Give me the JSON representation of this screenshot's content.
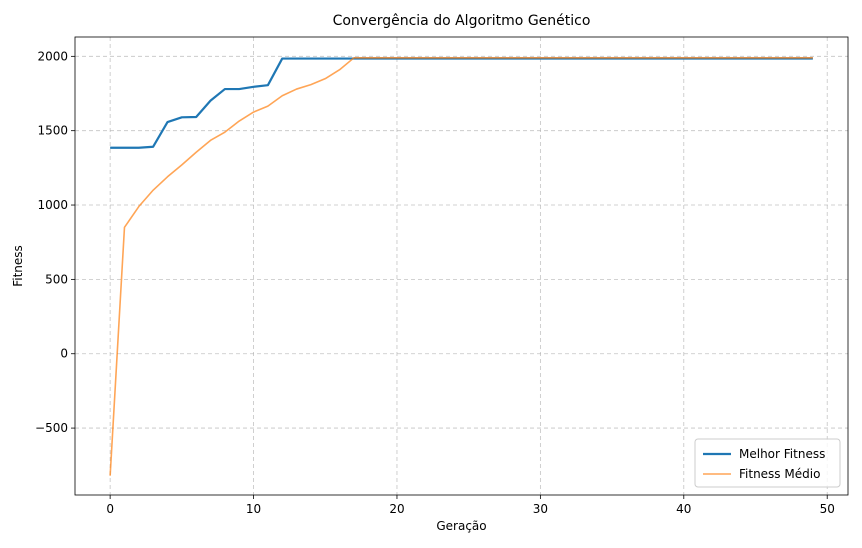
{
  "chart_data": {
    "type": "line",
    "title": "Convergência do Algoritmo Genético",
    "xlabel": "Geração",
    "ylabel": "Fitness",
    "xlim": [
      -2.45,
      51.45
    ],
    "ylim": [
      -950,
      2130
    ],
    "xticks": [
      0,
      10,
      20,
      30,
      40,
      50
    ],
    "yticks": [
      -500,
      0,
      500,
      1000,
      1500,
      2000
    ],
    "ytick_labels": [
      "−500",
      "0",
      "500",
      "1000",
      "1500",
      "2000"
    ],
    "grid": true,
    "legend_position": "lower-right",
    "series": [
      {
        "name": "Melhor Fitness",
        "color": "#1f77b4",
        "x": [
          0,
          1,
          2,
          3,
          4,
          5,
          6,
          7,
          8,
          9,
          10,
          11,
          12,
          13,
          14,
          15,
          16,
          17,
          18,
          19,
          20,
          21,
          22,
          23,
          24,
          25,
          26,
          27,
          28,
          29,
          30,
          31,
          32,
          33,
          34,
          35,
          36,
          37,
          38,
          39,
          40,
          41,
          42,
          43,
          44,
          45,
          46,
          47,
          48,
          49
        ],
        "values": [
          1385,
          1385,
          1385,
          1392,
          1558,
          1590,
          1592,
          1702,
          1780,
          1780,
          1795,
          1806,
          1985,
          1985,
          1985,
          1985,
          1985,
          1985,
          1985,
          1985,
          1985,
          1985,
          1985,
          1985,
          1985,
          1985,
          1985,
          1985,
          1985,
          1985,
          1985,
          1985,
          1985,
          1985,
          1985,
          1985,
          1985,
          1985,
          1985,
          1985,
          1985,
          1985,
          1985,
          1985,
          1985,
          1985,
          1985,
          1985,
          1985,
          1985
        ]
      },
      {
        "name": "Fitness Médio",
        "color": "#ff7f0e",
        "x": [
          0,
          1,
          2,
          3,
          4,
          5,
          6,
          7,
          8,
          9,
          10,
          11,
          12,
          13,
          14,
          15,
          16,
          17,
          18,
          19,
          20,
          21,
          22,
          23,
          24,
          25,
          26,
          27,
          28,
          29,
          30,
          31,
          32,
          33,
          34,
          35,
          36,
          37,
          38,
          39,
          40,
          41,
          42,
          43,
          44,
          45,
          46,
          47,
          48,
          49
        ],
        "values": [
          -820,
          850,
          990,
          1100,
          1190,
          1270,
          1355,
          1435,
          1490,
          1565,
          1625,
          1665,
          1735,
          1780,
          1810,
          1850,
          1910,
          1990,
          1990,
          1990,
          1990,
          1990,
          1990,
          1990,
          1990,
          1990,
          1990,
          1990,
          1990,
          1990,
          1990,
          1990,
          1990,
          1990,
          1990,
          1990,
          1990,
          1990,
          1990,
          1990,
          1990,
          1990,
          1990,
          1990,
          1990,
          1990,
          1990,
          1990,
          1990,
          1990
        ]
      }
    ]
  }
}
